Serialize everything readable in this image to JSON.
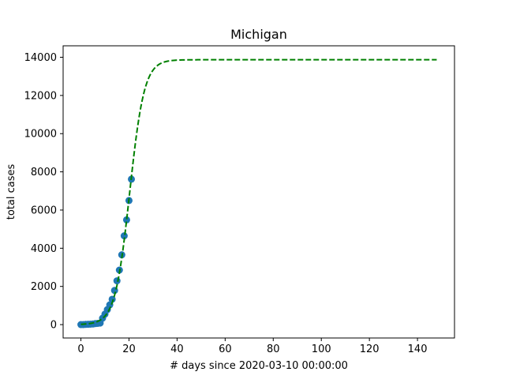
{
  "chart_data": {
    "type": "scatter",
    "title": "Michigan",
    "xlabel": "# days since 2020-03-10 00:00:00",
    "ylabel": "total cases",
    "xlim": [
      -7.4,
      155.4
    ],
    "ylim": [
      -700,
      14600
    ],
    "x_ticks": [
      0,
      20,
      40,
      60,
      80,
      100,
      120,
      140
    ],
    "y_ticks": [
      0,
      2000,
      4000,
      6000,
      8000,
      10000,
      12000,
      14000
    ],
    "grid": false,
    "legend": "none",
    "series": [
      {
        "kind": "scatter",
        "color": "#1f77b4",
        "marker": "circle",
        "x": [
          0,
          1,
          2,
          3,
          4,
          5,
          6,
          7,
          8,
          9,
          10,
          11,
          12,
          13,
          14,
          15,
          16,
          17,
          18,
          19,
          20,
          21
        ],
        "y": [
          2,
          2,
          12,
          16,
          25,
          33,
          53,
          65,
          83,
          334,
          549,
          787,
          1035,
          1328,
          1791,
          2294,
          2856,
          3657,
          4650,
          5486,
          6498,
          7615
        ]
      },
      {
        "kind": "line",
        "color": "#008000",
        "style": "dashed",
        "model": "logistic",
        "x_range": [
          0,
          148
        ],
        "K": 13870,
        "r": 0.33,
        "t0": 20.3
      }
    ]
  }
}
